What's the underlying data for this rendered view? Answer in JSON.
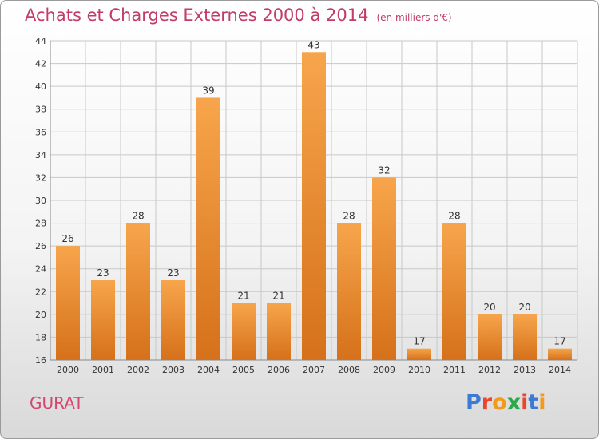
{
  "header": {
    "title": "Achats et Charges Externes 2000 à 2014",
    "unit": "(en milliers d'€)"
  },
  "commune": "GURAT",
  "logo": {
    "text": "Proxiti",
    "letter_colors": [
      "#3d7ad6",
      "#e8462e",
      "#f29a1a",
      "#2aa84a",
      "#e8462e",
      "#3d7ad6",
      "#f29a1a"
    ]
  },
  "colors": {
    "bar_light": "#f7a54c",
    "bar_dark": "#d5711a",
    "grid": "#c8c8c8",
    "title": "#c23b6a",
    "text": "#333333"
  },
  "chart_data": {
    "type": "bar",
    "categories": [
      "2000",
      "2001",
      "2002",
      "2003",
      "2004",
      "2005",
      "2006",
      "2007",
      "2008",
      "2009",
      "2010",
      "2011",
      "2012",
      "2013",
      "2014"
    ],
    "values": [
      26,
      23,
      28,
      23,
      39,
      21,
      21,
      43,
      28,
      32,
      17,
      28,
      20,
      20,
      17
    ],
    "ylim": [
      16,
      44
    ],
    "yticks": [
      16,
      18,
      20,
      22,
      24,
      26,
      28,
      30,
      32,
      34,
      36,
      38,
      40,
      42,
      44
    ],
    "grid": true,
    "title": "Achats et Charges Externes 2000 à 2014",
    "xlabel": "",
    "ylabel": ""
  }
}
